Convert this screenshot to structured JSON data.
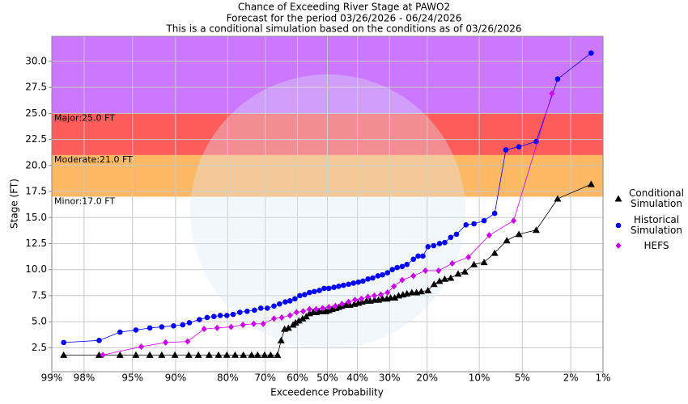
{
  "chart_data": {
    "type": "line",
    "title": "Chance of Exceeding River Stage at PAWO2",
    "subtitle": [
      "Forecast for the period 03/26/2026 - 06/24/2026",
      "This is a conditional simulation based on the conditions as of 03/26/2026"
    ],
    "x_label": "Exceedence Probability",
    "y_label": "Stage (FT)",
    "x_scale": "probability",
    "xlim": [
      99,
      1
    ],
    "xticks": [
      {
        "value": 99,
        "label": "99%"
      },
      {
        "value": 98,
        "label": "98%"
      },
      {
        "value": 95,
        "label": "95%"
      },
      {
        "value": 90,
        "label": "90%"
      },
      {
        "value": 80,
        "label": "80%"
      },
      {
        "value": 70,
        "label": "70%"
      },
      {
        "value": 60,
        "label": "60%"
      },
      {
        "value": 50,
        "label": "50%"
      },
      {
        "value": 40,
        "label": "40%"
      },
      {
        "value": 30,
        "label": "30%"
      },
      {
        "value": 20,
        "label": "20%"
      },
      {
        "value": 10,
        "label": "10%"
      },
      {
        "value": 5,
        "label": "5%"
      },
      {
        "value": 2,
        "label": "2%"
      },
      {
        "value": 1,
        "label": "1%"
      }
    ],
    "ylim": [
      0.2,
      32.4
    ],
    "yticks": [
      {
        "value": 2.5,
        "label": "2.5"
      },
      {
        "value": 5,
        "label": "5.0"
      },
      {
        "value": 7.5,
        "label": "7.5"
      },
      {
        "value": 10,
        "label": "10.0"
      },
      {
        "value": 12.5,
        "label": "12.5"
      },
      {
        "value": 15,
        "label": "15.0"
      },
      {
        "value": 17.5,
        "label": "17.5"
      },
      {
        "value": 20,
        "label": "20.0"
      },
      {
        "value": 22.5,
        "label": "22.5"
      },
      {
        "value": 25,
        "label": "25.0"
      },
      {
        "value": 27.5,
        "label": "27.5"
      },
      {
        "value": 30,
        "label": "30.0"
      }
    ],
    "grid": true,
    "flood_stages": [
      {
        "value": 17,
        "label": "Minor:17.0 FT",
        "color": "#ffb864"
      },
      {
        "value": 21,
        "label": "Moderate:21.0 FT",
        "color": "#ff5c5c"
      },
      {
        "value": 25,
        "label": "Major:25.0 FT",
        "color": "#cc77ff"
      }
    ],
    "series": [
      {
        "name": "Conditional Simulation",
        "color": "#000000",
        "marker": "triangle",
        "x": [
          98.7,
          97.3,
          96.0,
          94.7,
          93.3,
          91.9,
          90.1,
          87.9,
          86.2,
          84.1,
          82.1,
          80.2,
          78.2,
          76.1,
          73.9,
          72.2,
          70.2,
          68.4,
          66.3,
          65.2,
          64.1,
          62.9,
          61.4,
          60.6,
          59.5,
          58.3,
          57.1,
          56.0,
          54.8,
          53.8,
          52.8,
          51.6,
          50.5,
          49.5,
          48.4,
          47.2,
          46.2,
          45.2,
          43.7,
          42.5,
          41.0,
          39.7,
          38.5,
          37.1,
          35.9,
          34.5,
          33.3,
          32.1,
          30.8,
          29.7,
          28.5,
          27.4,
          26.2,
          25.1,
          23.8,
          22.6,
          21.4,
          19.8,
          18.4,
          17.2,
          16.1,
          14.9,
          13.5,
          12.3,
          10.8,
          9.3,
          7.9,
          6.5,
          5.3,
          3.9,
          2.6,
          1.3
        ],
        "values": [
          1.8,
          1.8,
          1.8,
          1.8,
          1.8,
          1.8,
          1.8,
          1.8,
          1.8,
          1.8,
          1.8,
          1.8,
          1.8,
          1.8,
          1.8,
          1.8,
          1.8,
          1.8,
          1.8,
          3.2,
          4.3,
          4.4,
          4.7,
          4.9,
          5.1,
          5.3,
          5.5,
          5.8,
          5.9,
          5.9,
          6.0,
          6.0,
          6.0,
          6.1,
          6.2,
          6.3,
          6.4,
          6.5,
          6.6,
          6.6,
          6.7,
          6.8,
          6.9,
          7.0,
          7.0,
          7.1,
          7.1,
          7.2,
          7.2,
          7.3,
          7.3,
          7.5,
          7.6,
          7.7,
          7.8,
          7.8,
          7.9,
          8.0,
          8.6,
          8.9,
          9.1,
          9.2,
          9.6,
          9.8,
          10.5,
          10.7,
          11.6,
          12.8,
          13.4,
          13.8,
          16.8,
          18.2
        ]
      },
      {
        "name": "Historical Simulation",
        "color": "#0000ff",
        "marker": "circle",
        "x": [
          98.7,
          97.3,
          96.0,
          94.7,
          93.3,
          91.9,
          90.3,
          88.9,
          87.8,
          86.0,
          84.5,
          83.1,
          81.7,
          80.2,
          78.7,
          77.0,
          75.1,
          73.1,
          71.3,
          69.4,
          67.4,
          65.7,
          63.9,
          62.4,
          60.8,
          59.2,
          57.6,
          56.0,
          54.4,
          52.7,
          51.1,
          49.5,
          47.8,
          46.2,
          44.6,
          42.9,
          41.3,
          39.7,
          38.2,
          36.6,
          35.1,
          33.5,
          32.1,
          30.6,
          29.2,
          27.8,
          26.4,
          25.1,
          23.4,
          22.2,
          21.0,
          19.8,
          18.5,
          17.2,
          16.1,
          14.9,
          13.8,
          12.1,
          10.8,
          9.3,
          7.9,
          6.6,
          5.3,
          3.9,
          2.6,
          1.3
        ],
        "values": [
          3.0,
          3.2,
          4.0,
          4.2,
          4.4,
          4.5,
          4.6,
          4.7,
          4.9,
          5.2,
          5.4,
          5.5,
          5.6,
          5.6,
          5.7,
          5.9,
          6.0,
          6.1,
          6.3,
          6.3,
          6.5,
          6.7,
          6.9,
          7.0,
          7.2,
          7.5,
          7.6,
          7.8,
          7.9,
          8.0,
          8.2,
          8.2,
          8.3,
          8.4,
          8.5,
          8.6,
          8.7,
          8.8,
          8.9,
          9.1,
          9.2,
          9.4,
          9.5,
          9.7,
          10.0,
          10.2,
          10.3,
          10.5,
          11.0,
          11.3,
          11.3,
          12.2,
          12.3,
          12.5,
          12.6,
          13.1,
          13.4,
          14.3,
          14.4,
          14.7,
          15.4,
          21.5,
          21.8,
          22.3,
          28.3,
          30.8
        ]
      },
      {
        "name": "HEFS",
        "color": "#cc00ee",
        "marker": "diamond",
        "x": [
          97.1,
          94.2,
          91.4,
          88.1,
          85.1,
          82.4,
          79.2,
          76.2,
          73.3,
          70.6,
          67.4,
          65.0,
          62.4,
          60.3,
          58.1,
          56.0,
          53.8,
          51.6,
          49.5,
          47.3,
          45.1,
          42.9,
          40.8,
          38.7,
          36.6,
          34.6,
          32.6,
          30.6,
          28.7,
          26.4,
          23.4,
          20.4,
          17.4,
          14.6,
          11.7,
          8.6,
          5.8,
          2.9
        ],
        "values": [
          1.8,
          2.6,
          3.0,
          3.1,
          4.3,
          4.4,
          4.5,
          4.7,
          4.8,
          4.8,
          5.3,
          5.4,
          5.6,
          5.9,
          6.0,
          6.2,
          6.2,
          6.3,
          6.4,
          6.5,
          6.7,
          6.9,
          7.1,
          7.2,
          7.4,
          7.5,
          7.6,
          7.8,
          8.4,
          9.0,
          9.4,
          9.9,
          9.9,
          10.6,
          11.2,
          13.3,
          14.7,
          26.9
        ]
      }
    ]
  }
}
